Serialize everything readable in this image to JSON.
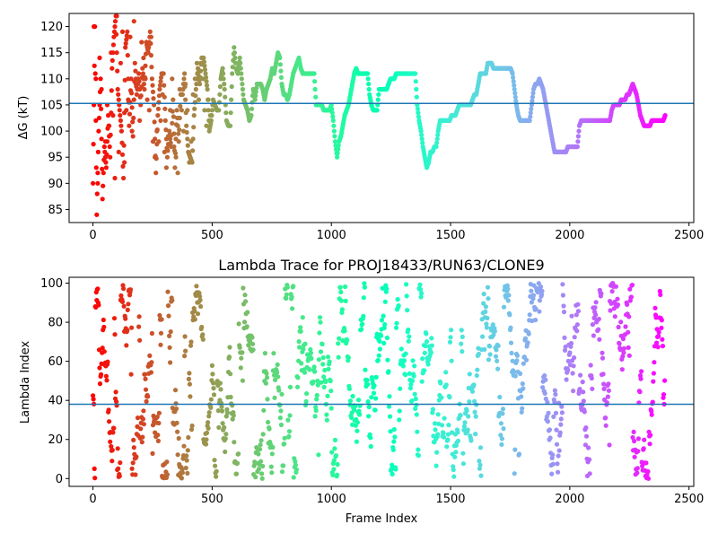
{
  "chart_data": [
    {
      "type": "scatter",
      "title": "",
      "xlabel": "",
      "ylabel": "ΔG (kT)",
      "xlim": [
        -100,
        2520
      ],
      "ylim": [
        82.5,
        122.5
      ],
      "xticks": [
        0,
        500,
        1000,
        1500,
        2000,
        2500
      ],
      "yticks": [
        85,
        90,
        95,
        100,
        105,
        110,
        115,
        120
      ],
      "hline": 105.3,
      "hline_color": "#1f77b4",
      "colormap": "rainbow",
      "grid": false,
      "legend": "none",
      "x_range": [
        0,
        2400
      ],
      "trace": [
        [
          0,
          90
        ],
        [
          8,
          120
        ],
        [
          16,
          84
        ],
        [
          24,
          100
        ],
        [
          32,
          110
        ],
        [
          40,
          87
        ],
        [
          48,
          97
        ],
        [
          56,
          93
        ],
        [
          64,
          103
        ],
        [
          72,
          95
        ],
        [
          80,
          112
        ],
        [
          88,
          118
        ],
        [
          96,
          122
        ],
        [
          104,
          108
        ],
        [
          112,
          104
        ],
        [
          120,
          100
        ],
        [
          128,
          91
        ],
        [
          136,
          116
        ],
        [
          144,
          119
        ],
        [
          152,
          101
        ],
        [
          160,
          110
        ],
        [
          168,
          99
        ],
        [
          176,
          113
        ],
        [
          184,
          107
        ],
        [
          192,
          111
        ],
        [
          200,
          105
        ],
        [
          208,
          112
        ],
        [
          216,
          108
        ],
        [
          224,
          117
        ],
        [
          232,
          115
        ],
        [
          240,
          119
        ],
        [
          248,
          110
        ],
        [
          256,
          105
        ],
        [
          264,
          92
        ],
        [
          272,
          103
        ],
        [
          280,
          108
        ],
        [
          288,
          111
        ],
        [
          296,
          111
        ],
        [
          304,
          102
        ],
        [
          312,
          95
        ],
        [
          320,
          100
        ],
        [
          328,
          97
        ],
        [
          336,
          106
        ],
        [
          344,
          93
        ],
        [
          352,
          104
        ],
        [
          360,
          98
        ],
        [
          368,
          107
        ],
        [
          376,
          107
        ],
        [
          384,
          111
        ],
        [
          392,
          101
        ],
        [
          400,
          96
        ],
        [
          408,
          95
        ],
        [
          416,
          94
        ],
        [
          424,
          103
        ],
        [
          432,
          108
        ],
        [
          440,
          112
        ],
        [
          448,
          109
        ],
        [
          456,
          114
        ],
        [
          464,
          114
        ],
        [
          472,
          111
        ],
        [
          480,
          108
        ],
        [
          488,
          100
        ],
        [
          496,
          102
        ],
        [
          504,
          106
        ],
        [
          512,
          105
        ],
        [
          520,
          104
        ],
        [
          528,
          104
        ],
        [
          536,
          110
        ],
        [
          544,
          112
        ],
        [
          552,
          108
        ],
        [
          560,
          102
        ],
        [
          568,
          101
        ],
        [
          576,
          101
        ],
        [
          584,
          111
        ],
        [
          592,
          116
        ],
        [
          600,
          112
        ],
        [
          608,
          111
        ],
        [
          616,
          114
        ],
        [
          624,
          110
        ],
        [
          632,
          106
        ],
        [
          640,
          105
        ],
        [
          648,
          104
        ],
        [
          656,
          102
        ],
        [
          664,
          103
        ],
        [
          672,
          108
        ],
        [
          680,
          106
        ],
        [
          688,
          109
        ],
        [
          696,
          109
        ],
        [
          704,
          109
        ],
        [
          712,
          108
        ],
        [
          720,
          106
        ],
        [
          728,
          108
        ],
        [
          736,
          109
        ],
        [
          744,
          110
        ],
        [
          752,
          112
        ],
        [
          760,
          111
        ],
        [
          768,
          113
        ],
        [
          776,
          115
        ],
        [
          784,
          114
        ],
        [
          792,
          109
        ],
        [
          800,
          107
        ],
        [
          808,
          107
        ],
        [
          816,
          106
        ],
        [
          824,
          107
        ],
        [
          832,
          109
        ],
        [
          840,
          111
        ],
        [
          848,
          112
        ],
        [
          856,
          113
        ],
        [
          864,
          114
        ],
        [
          872,
          112
        ],
        [
          880,
          111
        ],
        [
          888,
          111
        ],
        [
          896,
          111
        ],
        [
          904,
          111
        ],
        [
          912,
          111
        ],
        [
          920,
          111
        ],
        [
          928,
          111
        ],
        [
          936,
          105
        ],
        [
          944,
          105
        ],
        [
          952,
          105
        ],
        [
          960,
          105
        ],
        [
          968,
          104
        ],
        [
          976,
          104
        ],
        [
          984,
          104
        ],
        [
          992,
          104
        ],
        [
          1000,
          105
        ],
        [
          1008,
          102
        ],
        [
          1016,
          98
        ],
        [
          1024,
          95
        ],
        [
          1032,
          98
        ],
        [
          1040,
          99
        ],
        [
          1048,
          101
        ],
        [
          1056,
          103
        ],
        [
          1064,
          104
        ],
        [
          1072,
          105
        ],
        [
          1080,
          107
        ],
        [
          1088,
          109
        ],
        [
          1096,
          111
        ],
        [
          1104,
          112
        ],
        [
          1112,
          111
        ],
        [
          1120,
          111
        ],
        [
          1128,
          111
        ],
        [
          1136,
          111
        ],
        [
          1144,
          111
        ],
        [
          1152,
          111
        ],
        [
          1160,
          107
        ],
        [
          1168,
          105
        ],
        [
          1176,
          104
        ],
        [
          1184,
          104
        ],
        [
          1192,
          104
        ],
        [
          1200,
          108
        ],
        [
          1208,
          108
        ],
        [
          1216,
          108
        ],
        [
          1224,
          108
        ],
        [
          1232,
          108
        ],
        [
          1240,
          109
        ],
        [
          1248,
          110
        ],
        [
          1256,
          110
        ],
        [
          1264,
          110
        ],
        [
          1272,
          111
        ],
        [
          1280,
          111
        ],
        [
          1288,
          111
        ],
        [
          1296,
          111
        ],
        [
          1304,
          111
        ],
        [
          1312,
          111
        ],
        [
          1320,
          111
        ],
        [
          1328,
          111
        ],
        [
          1336,
          111
        ],
        [
          1344,
          111
        ],
        [
          1352,
          111
        ],
        [
          1360,
          105
        ],
        [
          1368,
          102
        ],
        [
          1376,
          100
        ],
        [
          1384,
          97
        ],
        [
          1392,
          95
        ],
        [
          1400,
          93
        ],
        [
          1408,
          94
        ],
        [
          1416,
          96
        ],
        [
          1424,
          96
        ],
        [
          1432,
          97
        ],
        [
          1440,
          97
        ],
        [
          1448,
          100
        ],
        [
          1456,
          102
        ],
        [
          1464,
          102
        ],
        [
          1472,
          102
        ],
        [
          1480,
          102
        ],
        [
          1488,
          102
        ],
        [
          1496,
          102
        ],
        [
          1504,
          103
        ],
        [
          1512,
          103
        ],
        [
          1520,
          103
        ],
        [
          1528,
          104
        ],
        [
          1536,
          105
        ],
        [
          1544,
          105
        ],
        [
          1552,
          105
        ],
        [
          1560,
          105
        ],
        [
          1568,
          105
        ],
        [
          1576,
          105
        ],
        [
          1584,
          105
        ],
        [
          1592,
          106
        ],
        [
          1600,
          107
        ],
        [
          1608,
          107
        ],
        [
          1616,
          109
        ],
        [
          1624,
          111
        ],
        [
          1632,
          111
        ],
        [
          1640,
          111
        ],
        [
          1648,
          111
        ],
        [
          1656,
          113
        ],
        [
          1664,
          113
        ],
        [
          1672,
          113
        ],
        [
          1680,
          112
        ],
        [
          1688,
          112
        ],
        [
          1696,
          112
        ],
        [
          1704,
          112
        ],
        [
          1712,
          112
        ],
        [
          1720,
          112
        ],
        [
          1728,
          112
        ],
        [
          1736,
          112
        ],
        [
          1744,
          112
        ],
        [
          1752,
          112
        ],
        [
          1760,
          111
        ],
        [
          1768,
          108
        ],
        [
          1776,
          105
        ],
        [
          1784,
          103
        ],
        [
          1792,
          102
        ],
        [
          1800,
          102
        ],
        [
          1808,
          102
        ],
        [
          1816,
          102
        ],
        [
          1824,
          102
        ],
        [
          1832,
          102
        ],
        [
          1840,
          105
        ],
        [
          1848,
          108
        ],
        [
          1856,
          109
        ],
        [
          1864,
          109
        ],
        [
          1872,
          110
        ],
        [
          1880,
          109
        ],
        [
          1888,
          108
        ],
        [
          1896,
          106
        ],
        [
          1904,
          104
        ],
        [
          1912,
          102
        ],
        [
          1920,
          100
        ],
        [
          1928,
          98
        ],
        [
          1936,
          96
        ],
        [
          1944,
          96
        ],
        [
          1952,
          96
        ],
        [
          1960,
          96
        ],
        [
          1968,
          96
        ],
        [
          1976,
          96
        ],
        [
          1984,
          96
        ],
        [
          1992,
          97
        ],
        [
          2000,
          97
        ],
        [
          2008,
          97
        ],
        [
          2016,
          97
        ],
        [
          2024,
          97
        ],
        [
          2032,
          97
        ],
        [
          2040,
          101
        ],
        [
          2048,
          102
        ],
        [
          2056,
          102
        ],
        [
          2064,
          102
        ],
        [
          2072,
          102
        ],
        [
          2080,
          102
        ],
        [
          2088,
          102
        ],
        [
          2096,
          102
        ],
        [
          2104,
          102
        ],
        [
          2112,
          102
        ],
        [
          2120,
          102
        ],
        [
          2128,
          102
        ],
        [
          2136,
          102
        ],
        [
          2144,
          102
        ],
        [
          2152,
          102
        ],
        [
          2160,
          102
        ],
        [
          2168,
          102
        ],
        [
          2176,
          104
        ],
        [
          2184,
          105
        ],
        [
          2192,
          105
        ],
        [
          2200,
          105
        ],
        [
          2208,
          105
        ],
        [
          2216,
          106
        ],
        [
          2224,
          106
        ],
        [
          2232,
          106
        ],
        [
          2240,
          107
        ],
        [
          2248,
          107
        ],
        [
          2256,
          108
        ],
        [
          2264,
          109
        ],
        [
          2272,
          108
        ],
        [
          2280,
          107
        ],
        [
          2288,
          105
        ],
        [
          2296,
          103
        ],
        [
          2304,
          102
        ],
        [
          2312,
          101
        ],
        [
          2320,
          101
        ],
        [
          2328,
          101
        ],
        [
          2336,
          101
        ],
        [
          2344,
          102
        ],
        [
          2352,
          102
        ],
        [
          2360,
          102
        ],
        [
          2368,
          102
        ],
        [
          2376,
          102
        ],
        [
          2384,
          102
        ],
        [
          2392,
          102
        ],
        [
          2400,
          103
        ]
      ],
      "scatter_extra": [
        [
          4,
          120
        ],
        [
          12,
          110
        ],
        [
          20,
          90
        ],
        [
          28,
          114
        ],
        [
          36,
          108
        ],
        [
          52,
          98
        ],
        [
          60,
          105
        ],
        [
          68,
          101
        ],
        [
          76,
          115
        ],
        [
          84,
          103
        ],
        [
          92,
          91
        ],
        [
          100,
          122
        ],
        [
          108,
          96
        ],
        [
          116,
          113
        ],
        [
          124,
          119
        ],
        [
          132,
          94
        ],
        [
          140,
          104
        ],
        [
          148,
          106
        ],
        [
          156,
          118
        ],
        [
          164,
          100
        ],
        [
          172,
          121
        ],
        [
          180,
          109
        ],
        [
          196,
          102
        ],
        [
          204,
          117
        ],
        [
          212,
          114
        ],
        [
          220,
          110
        ],
        [
          228,
          106
        ],
        [
          236,
          104
        ],
        [
          244,
          118
        ],
        [
          252,
          98
        ],
        [
          260,
          95
        ],
        [
          268,
          100
        ],
        [
          276,
          98
        ],
        [
          284,
          102
        ],
        [
          292,
          107
        ],
        [
          300,
          96
        ],
        [
          308,
          93
        ],
        [
          316,
          99
        ],
        [
          324,
          104
        ],
        [
          332,
          110
        ],
        [
          340,
          97
        ],
        [
          348,
          95
        ],
        [
          356,
          92
        ],
        [
          364,
          108
        ],
        [
          372,
          104
        ],
        [
          380,
          100
        ],
        [
          388,
          109
        ],
        [
          396,
          104
        ],
        [
          404,
          94
        ],
        [
          412,
          98
        ],
        [
          420,
          107
        ],
        [
          428,
          110
        ],
        [
          436,
          113
        ],
        [
          444,
          106
        ],
        [
          452,
          113
        ],
        [
          460,
          110
        ],
        [
          468,
          104
        ],
        [
          476,
          101
        ],
        [
          484,
          106
        ],
        [
          492,
          103
        ]
      ]
    },
    {
      "type": "scatter",
      "title": "Lambda Trace for PROJ18433/RUN63/CLONE9",
      "xlabel": "Frame Index",
      "ylabel": "Lambda Index",
      "xlim": [
        -100,
        2520
      ],
      "ylim": [
        -4,
        103
      ],
      "xticks": [
        0,
        500,
        1000,
        1500,
        2000,
        2500
      ],
      "yticks": [
        0,
        20,
        40,
        60,
        80,
        100
      ],
      "hline": 38,
      "hline_color": "#1f77b4",
      "colormap": "rainbow",
      "grid": false,
      "legend": "none",
      "x_range": [
        0,
        2400
      ],
      "n_points": 2400,
      "distribution": "lambda index values 0-100 sampled per frame, random walk in vertical streaks",
      "seed": 63
    }
  ]
}
